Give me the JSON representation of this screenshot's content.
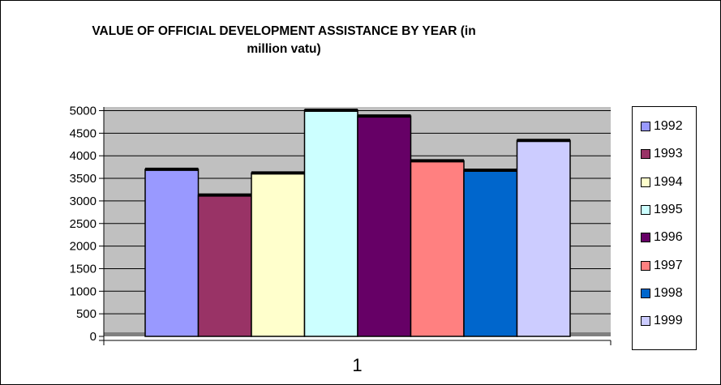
{
  "chart_data": {
    "type": "bar",
    "title": "VALUE OF OFFICIAL DEVELOPMENT ASSISTANCE BY YEAR (in million vatu)",
    "categories": [
      "1"
    ],
    "series": [
      {
        "name": "1992",
        "color": "#9999FF",
        "values": [
          3700
        ]
      },
      {
        "name": "1993",
        "color": "#993366",
        "values": [
          3130
        ]
      },
      {
        "name": "1994",
        "color": "#FFFFCC",
        "values": [
          3620
        ]
      },
      {
        "name": "1995",
        "color": "#CCFFFF",
        "values": [
          5010
        ]
      },
      {
        "name": "1996",
        "color": "#660066",
        "values": [
          4880
        ]
      },
      {
        "name": "1997",
        "color": "#FF8080",
        "values": [
          3890
        ]
      },
      {
        "name": "1998",
        "color": "#0066CC",
        "values": [
          3680
        ]
      },
      {
        "name": "1999",
        "color": "#CCCCFF",
        "values": [
          4340
        ]
      }
    ],
    "y_ticks": [
      "0",
      "500",
      "1000",
      "1500",
      "2000",
      "2500",
      "3000",
      "3500",
      "4000",
      "4500",
      "5000"
    ],
    "ylim": [
      0,
      5000
    ],
    "grid": true,
    "legend_position": "right",
    "plot_background": "#C0C0C0"
  }
}
